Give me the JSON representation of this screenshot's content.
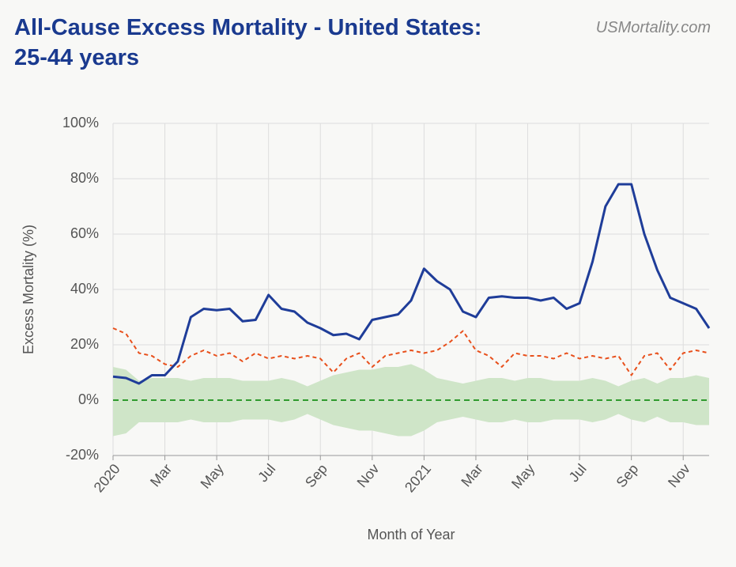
{
  "chart_data": {
    "type": "line",
    "title": "All-Cause Excess Mortality - United States: 25-44 years",
    "source": "USMortality.com",
    "x_label": "Month of Year",
    "y_label": "Excess Mortality (%)",
    "x": [
      0,
      0.5,
      1,
      1.5,
      2,
      2.5,
      3,
      3.5,
      4,
      4.5,
      5,
      5.5,
      6,
      6.5,
      7,
      7.5,
      8,
      8.5,
      9,
      9.5,
      10,
      10.5,
      11,
      11.5,
      12,
      12.5,
      13,
      13.5,
      14,
      14.5,
      15,
      15.5,
      16,
      16.5,
      17,
      17.5,
      18,
      18.5,
      19,
      19.5,
      20,
      20.5,
      21,
      21.5,
      22,
      22.5,
      23
    ],
    "xlim": [
      0,
      23
    ],
    "xticks": [
      {
        "value": 0,
        "label": "2020"
      },
      {
        "value": 2,
        "label": "Mar"
      },
      {
        "value": 4,
        "label": "May"
      },
      {
        "value": 6,
        "label": "Jul"
      },
      {
        "value": 8,
        "label": "Sep"
      },
      {
        "value": 10,
        "label": "Nov"
      },
      {
        "value": 12,
        "label": "2021"
      },
      {
        "value": 14,
        "label": "Mar"
      },
      {
        "value": 16,
        "label": "May"
      },
      {
        "value": 18,
        "label": "Jul"
      },
      {
        "value": 20,
        "label": "Sep"
      },
      {
        "value": 22,
        "label": "Nov"
      }
    ],
    "ylim": [
      -20,
      100
    ],
    "yticks": [
      {
        "value": -20,
        "label": "-20%"
      },
      {
        "value": 0,
        "label": "0%"
      },
      {
        "value": 20,
        "label": "20%"
      },
      {
        "value": 40,
        "label": "40%"
      },
      {
        "value": 60,
        "label": "60%"
      },
      {
        "value": 80,
        "label": "80%"
      },
      {
        "value": 100,
        "label": "100%"
      }
    ],
    "grid": true,
    "series": [
      {
        "color": "#1f3d99",
        "style": "solid",
        "values": [
          8.5,
          8,
          6,
          9,
          9,
          14,
          30,
          33,
          32.5,
          33,
          28.5,
          29,
          38,
          33,
          32,
          28,
          26,
          23.5,
          24,
          22,
          29,
          30,
          31,
          36,
          47.5,
          43,
          40,
          32,
          30,
          37,
          37.5,
          37,
          37,
          36,
          37,
          33,
          35,
          50,
          70,
          78,
          78,
          60,
          47,
          37,
          35,
          33,
          26
        ]
      },
      {
        "color": "#e8501c",
        "style": "dashed",
        "values": [
          26,
          24,
          17,
          16,
          13,
          12,
          16,
          18,
          16,
          17,
          14,
          17,
          15,
          16,
          15,
          16,
          15,
          10,
          15,
          17,
          12,
          16,
          17,
          18,
          17,
          18,
          21,
          25,
          18,
          16,
          12,
          17,
          16,
          16,
          15,
          17,
          15,
          16,
          15,
          16,
          9,
          16,
          17,
          11,
          17,
          18,
          17
        ]
      }
    ],
    "band": {
      "color": "#cfe5c8",
      "upper": [
        12,
        11,
        7,
        8,
        8,
        8,
        7,
        8,
        8,
        8,
        7,
        7,
        7,
        8,
        7,
        5,
        7,
        9,
        10,
        11,
        11,
        12,
        12,
        13,
        11,
        8,
        7,
        6,
        7,
        8,
        8,
        7,
        8,
        8,
        7,
        7,
        7,
        8,
        7,
        5,
        7,
        8,
        6,
        8,
        8,
        9,
        8
      ],
      "lower": [
        -13,
        -12,
        -8,
        -8,
        -8,
        -8,
        -7,
        -8,
        -8,
        -8,
        -7,
        -7,
        -7,
        -8,
        -7,
        -5,
        -7,
        -9,
        -10,
        -11,
        -11,
        -12,
        -13,
        -13,
        -11,
        -8,
        -7,
        -6,
        -7,
        -8,
        -8,
        -7,
        -8,
        -8,
        -7,
        -7,
        -7,
        -8,
        -7,
        -5,
        -7,
        -8,
        -6,
        -8,
        -8,
        -9,
        -9
      ]
    },
    "reference_line": {
      "value": 0,
      "color": "#2e9a2e"
    }
  }
}
